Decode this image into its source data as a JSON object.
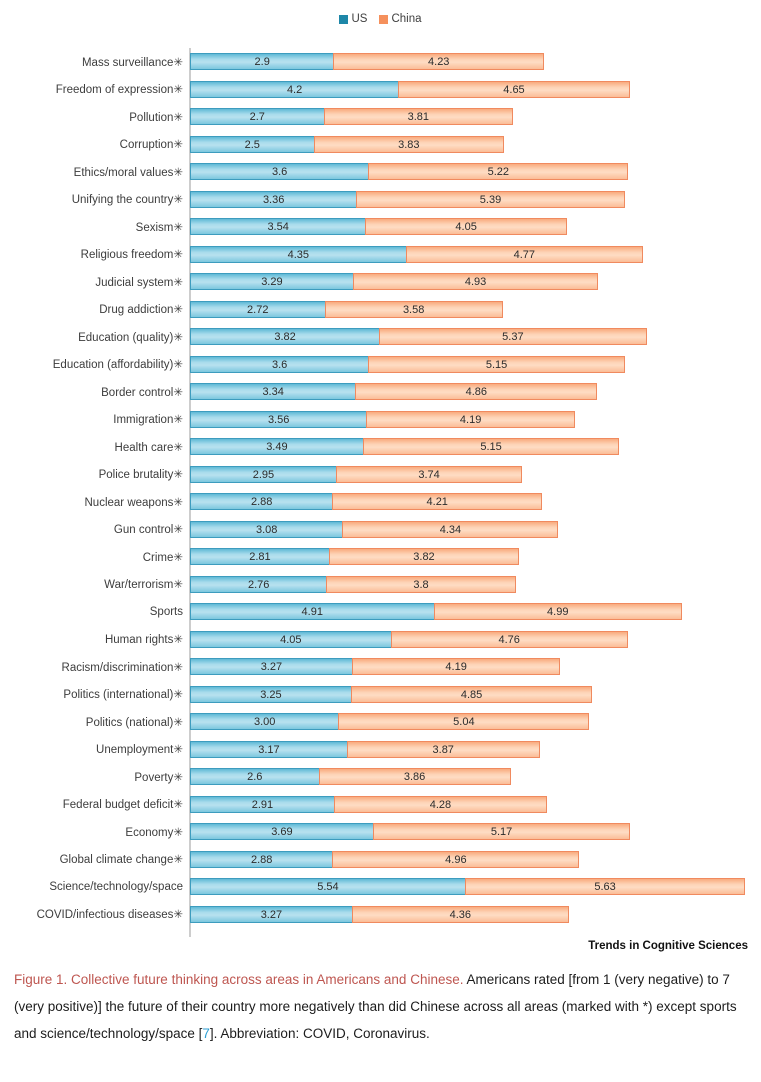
{
  "legend": {
    "us": "US",
    "china": "China"
  },
  "journal": "Trends in Cognitive Sciences",
  "caption": {
    "title": "Figure 1. Collective future thinking across areas in Americans and Chinese.",
    "body_before_ref": " Americans rated [from 1 (very negative) to 7 (very positive)] the future of their country more negatively than did Chinese across all areas (marked with *) except sports and science/technology/space [",
    "ref": "7",
    "body_after_ref": "]. Abbreviation: COVID, Coronavirus."
  },
  "colors": {
    "us_legend": "#1E87A8",
    "china_legend": "#F5905C",
    "us_bar_fill": "#A9DCEC",
    "us_bar_border": "#3D9CBE",
    "china_bar_fill": "#FDD3B6",
    "china_bar_border": "#F08A5F",
    "caption_red": "#BE5650",
    "reference_blue": "#2E9FD4",
    "axis_line": "#CDCDCD"
  },
  "chart_data": {
    "type": "bar",
    "subtype": "horizontal-stacked",
    "title": "",
    "xlabel": "",
    "ylabel": "",
    "value_range": [
      1,
      7
    ],
    "grid": false,
    "legend_position": "top-center",
    "categories": [
      "Mass surveillance✳",
      "Freedom of expression✳",
      "Pollution✳",
      "Corruption✳",
      "Ethics/moral values✳",
      "Unifying the country✳",
      "Sexism✳",
      "Religious freedom✳",
      "Judicial system✳",
      "Drug addiction✳",
      "Education (quality)✳",
      "Education (affordability)✳",
      "Border control✳",
      "Immigration✳",
      "Health care✳",
      "Police brutality✳",
      "Nuclear weapons✳",
      "Gun control✳",
      "Crime✳",
      "War/terrorism✳",
      "Sports",
      "Human rights✳",
      "Racism/discrimination✳",
      "Politics (international)✳",
      "Politics (national)✳",
      "Unemployment✳",
      "Poverty✳",
      "Federal budget deficit✳",
      "Economy✳",
      "Global climate change✳",
      "Science/technology/space",
      "COVID/infectious diseases✳"
    ],
    "series": [
      {
        "name": "US",
        "values": [
          2.9,
          4.2,
          2.7,
          2.5,
          3.6,
          3.36,
          3.54,
          4.35,
          3.29,
          2.72,
          3.82,
          3.6,
          3.34,
          3.56,
          3.49,
          2.95,
          2.88,
          3.08,
          2.81,
          2.76,
          4.91,
          4.05,
          3.27,
          3.25,
          3.0,
          3.17,
          2.6,
          2.91,
          3.69,
          2.88,
          5.54,
          3.27
        ],
        "labels": [
          "2.9",
          "4.2",
          "2.7",
          "2.5",
          "3.6",
          "3.36",
          "3.54",
          "4.35",
          "3.29",
          "2.72",
          "3.82",
          "3.6",
          "3.34",
          "3.56",
          "3.49",
          "2.95",
          "2.88",
          "3.08",
          "2.81",
          "2.76",
          "4.91",
          "4.05",
          "3.27",
          "3.25",
          "3.00",
          "3.17",
          "2.6",
          "2.91",
          "3.69",
          "2.88",
          "5.54",
          "3.27"
        ]
      },
      {
        "name": "China",
        "values": [
          4.23,
          4.65,
          3.81,
          3.83,
          5.22,
          5.39,
          4.05,
          4.77,
          4.93,
          3.58,
          5.37,
          5.15,
          4.86,
          4.19,
          5.15,
          3.74,
          4.21,
          4.34,
          3.82,
          3.8,
          4.99,
          4.76,
          4.19,
          4.85,
          5.04,
          3.87,
          3.86,
          4.28,
          5.17,
          4.96,
          5.63,
          4.36
        ],
        "labels": [
          "4.23",
          "4.65",
          "3.81",
          "3.83",
          "5.22",
          "5.39",
          "4.05",
          "4.77",
          "4.93",
          "3.58",
          "5.37",
          "5.15",
          "4.86",
          "4.19",
          "5.15",
          "3.74",
          "4.21",
          "4.34",
          "3.82",
          "3.8",
          "4.99",
          "4.76",
          "4.19",
          "4.85",
          "5.04",
          "3.87",
          "3.86",
          "4.28",
          "5.17",
          "4.96",
          "5.63",
          "4.36"
        ]
      }
    ]
  }
}
